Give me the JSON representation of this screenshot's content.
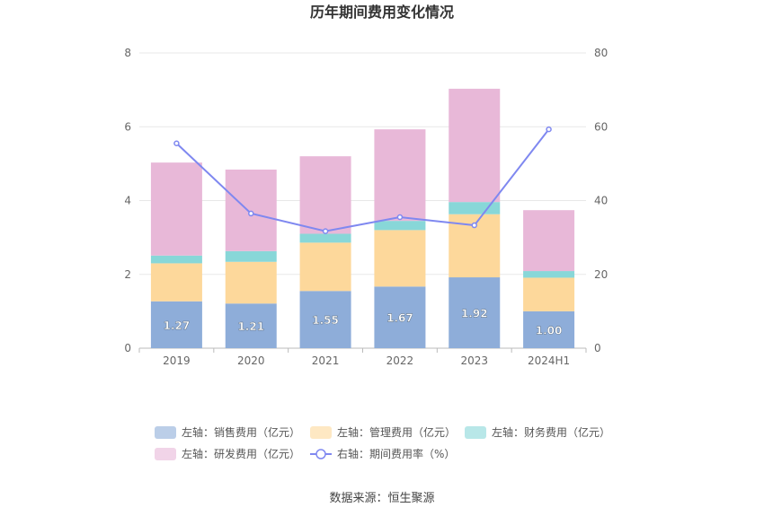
{
  "chart_data": {
    "type": "bar",
    "title": "历年期间费用变化情况",
    "categories": [
      "2019",
      "2020",
      "2021",
      "2022",
      "2023",
      "2024H1"
    ],
    "left_axis": {
      "ylim": [
        0,
        8
      ],
      "ticks": [
        "0",
        "2",
        "4",
        "6",
        "8"
      ]
    },
    "right_axis": {
      "ylim": [
        0,
        80
      ],
      "ticks": [
        "0",
        "20",
        "40",
        "60",
        "80"
      ]
    },
    "stacked": true,
    "series": [
      {
        "name": "左轴：销售费用（亿元）",
        "axis": "left",
        "color": "#8eadd9",
        "values": [
          1.27,
          1.21,
          1.55,
          1.67,
          1.92,
          1.0
        ],
        "labels": [
          "1.27",
          "1.21",
          "1.55",
          "1.67",
          "1.92",
          "1.00"
        ]
      },
      {
        "name": "左轴：管理费用（亿元）",
        "axis": "left",
        "color": "#fdd89b",
        "values": [
          1.03,
          1.13,
          1.31,
          1.53,
          1.71,
          0.91
        ]
      },
      {
        "name": "左轴：财务费用（亿元）",
        "axis": "left",
        "color": "#88d7d8",
        "values": [
          0.21,
          0.29,
          0.24,
          0.25,
          0.33,
          0.18
        ]
      },
      {
        "name": "左轴：研发费用（亿元）",
        "axis": "left",
        "color": "#e8b8d8",
        "values": [
          2.52,
          2.21,
          2.1,
          2.48,
          3.07,
          1.65
        ]
      },
      {
        "name": "右轴：期间费用率（%）",
        "axis": "right",
        "type": "line",
        "color": "#7f88f0",
        "values": [
          55.5,
          36.5,
          31.7,
          35.5,
          33.3,
          59.3
        ]
      }
    ],
    "grid": true,
    "legend_position": "bottom"
  },
  "source": "数据来源：恒生聚源"
}
